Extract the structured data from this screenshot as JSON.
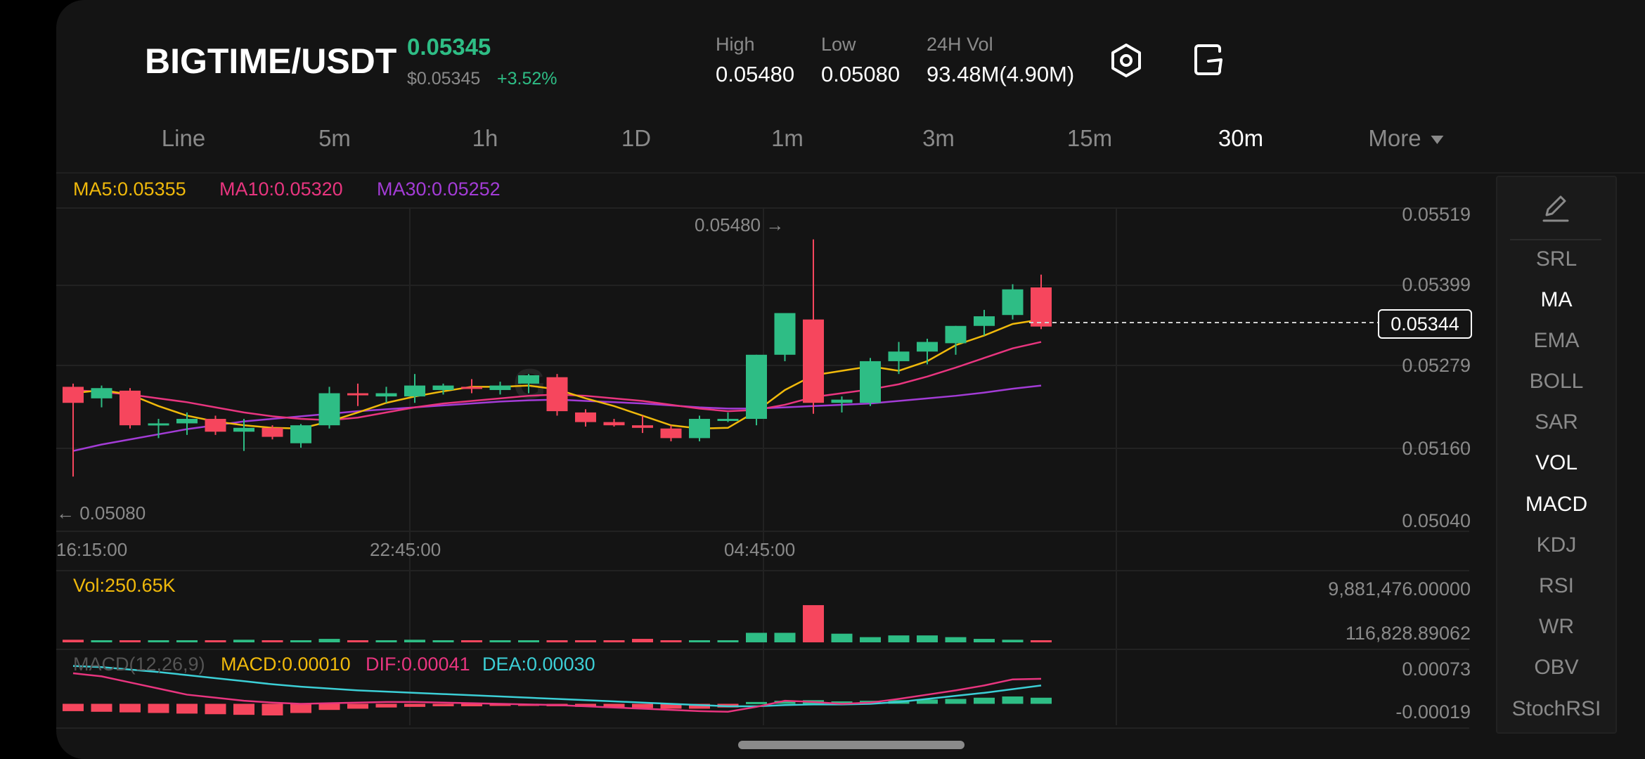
{
  "header": {
    "pair": "BIGTIME/USDT",
    "price": "0.05345",
    "price_usd": "$0.05345",
    "change": "+3.52%",
    "stats": [
      {
        "label": "High",
        "value": "0.05480"
      },
      {
        "label": "Low",
        "value": "0.05080"
      },
      {
        "label": "24H Vol",
        "value": "93.48M(4.90M)"
      }
    ],
    "icons": [
      "settings-icon",
      "share-icon"
    ]
  },
  "tabs": [
    {
      "label": "Line",
      "active": false
    },
    {
      "label": "5m",
      "active": false
    },
    {
      "label": "1h",
      "active": false
    },
    {
      "label": "1D",
      "active": false
    },
    {
      "label": "1m",
      "active": false
    },
    {
      "label": "3m",
      "active": false
    },
    {
      "label": "15m",
      "active": false
    },
    {
      "label": "30m",
      "active": true
    },
    {
      "label": "More",
      "active": false
    }
  ],
  "indicators": {
    "ma5": "MA5:0.05355",
    "ma10": "MA10:0.05320",
    "ma30": "MA30:0.05252",
    "vol": "Vol:250.65K",
    "macd_params": "MACD(12,26,9)",
    "macd": "MACD:0.00010",
    "dif": "DIF:0.00041",
    "dea": "DEA:0.00030"
  },
  "axes": {
    "price_ticks": [
      "0.05519",
      "0.05399",
      "0.05279",
      "0.05160",
      "0.05040"
    ],
    "time_ticks": [
      "16:15:00",
      "22:45:00",
      "04:45:00"
    ],
    "volume_ticks": [
      "9,881,476.00000",
      "116,828.89062"
    ],
    "macd_ticks": [
      "0.00073",
      "-0.00019"
    ],
    "last_price_tag": "0.05344",
    "high_annotation": "0.05480 →",
    "low_annotation": "← 0.05080"
  },
  "colors": {
    "up": "#2ebd85",
    "down": "#f6465d",
    "ma5": "#f0b90b",
    "ma10": "#e8357f",
    "ma30": "#a33cd6",
    "dea": "#3ccfd6"
  },
  "side_panel": {
    "items": [
      {
        "label": "SRL",
        "active": false
      },
      {
        "label": "MA",
        "active": true
      },
      {
        "label": "EMA",
        "active": false
      },
      {
        "label": "BOLL",
        "active": false
      },
      {
        "label": "SAR",
        "active": false
      },
      {
        "label": "VOL",
        "active": true
      },
      {
        "label": "MACD",
        "active": true
      },
      {
        "label": "KDJ",
        "active": false
      },
      {
        "label": "RSI",
        "active": false
      },
      {
        "label": "WR",
        "active": false
      },
      {
        "label": "OBV",
        "active": false
      },
      {
        "label": "StochRSI",
        "active": false
      }
    ]
  },
  "chart_data": {
    "type": "candlestick",
    "price_range": [
      0.0504,
      0.05519
    ],
    "candles": [
      {
        "o": 0.0525,
        "h": 0.05255,
        "l": 0.0511,
        "c": 0.05225
      },
      {
        "o": 0.05232,
        "h": 0.05252,
        "l": 0.05218,
        "c": 0.05248
      },
      {
        "o": 0.05244,
        "h": 0.05248,
        "l": 0.05185,
        "c": 0.0519
      },
      {
        "o": 0.0519,
        "h": 0.052,
        "l": 0.0517,
        "c": 0.05193
      },
      {
        "o": 0.05193,
        "h": 0.0521,
        "l": 0.05175,
        "c": 0.052
      },
      {
        "o": 0.052,
        "h": 0.05205,
        "l": 0.05175,
        "c": 0.0518
      },
      {
        "o": 0.0518,
        "h": 0.052,
        "l": 0.0515,
        "c": 0.05186
      },
      {
        "o": 0.05186,
        "h": 0.0519,
        "l": 0.05168,
        "c": 0.05172
      },
      {
        "o": 0.05162,
        "h": 0.05192,
        "l": 0.05155,
        "c": 0.0519
      },
      {
        "o": 0.0519,
        "h": 0.0525,
        "l": 0.05185,
        "c": 0.0524
      },
      {
        "o": 0.0524,
        "h": 0.05255,
        "l": 0.0522,
        "c": 0.05237
      },
      {
        "o": 0.05235,
        "h": 0.0525,
        "l": 0.05225,
        "c": 0.0524
      },
      {
        "o": 0.05235,
        "h": 0.0527,
        "l": 0.05225,
        "c": 0.05252
      },
      {
        "o": 0.05245,
        "h": 0.05255,
        "l": 0.05238,
        "c": 0.05252
      },
      {
        "o": 0.0525,
        "h": 0.05262,
        "l": 0.0524,
        "c": 0.05248
      },
      {
        "o": 0.05245,
        "h": 0.05258,
        "l": 0.05238,
        "c": 0.05252
      },
      {
        "o": 0.05255,
        "h": 0.0527,
        "l": 0.0524,
        "c": 0.05268
      },
      {
        "o": 0.05265,
        "h": 0.0527,
        "l": 0.05205,
        "c": 0.05212
      },
      {
        "o": 0.0521,
        "h": 0.05215,
        "l": 0.05188,
        "c": 0.05195
      },
      {
        "o": 0.05195,
        "h": 0.052,
        "l": 0.05188,
        "c": 0.0519
      },
      {
        "o": 0.0519,
        "h": 0.05205,
        "l": 0.05178,
        "c": 0.05186
      },
      {
        "o": 0.05185,
        "h": 0.0519,
        "l": 0.05165,
        "c": 0.0517
      },
      {
        "o": 0.0517,
        "h": 0.05205,
        "l": 0.05165,
        "c": 0.052
      },
      {
        "o": 0.052,
        "h": 0.0521,
        "l": 0.05195,
        "c": 0.052
      },
      {
        "o": 0.052,
        "h": 0.053,
        "l": 0.0519,
        "c": 0.053
      },
      {
        "o": 0.053,
        "h": 0.05365,
        "l": 0.0529,
        "c": 0.05365
      },
      {
        "o": 0.05355,
        "h": 0.0548,
        "l": 0.05208,
        "c": 0.05225
      },
      {
        "o": 0.05225,
        "h": 0.05235,
        "l": 0.0521,
        "c": 0.0523
      },
      {
        "o": 0.05225,
        "h": 0.05295,
        "l": 0.0522,
        "c": 0.0529
      },
      {
        "o": 0.0529,
        "h": 0.0532,
        "l": 0.0527,
        "c": 0.05305
      },
      {
        "o": 0.05305,
        "h": 0.05325,
        "l": 0.05285,
        "c": 0.0532
      },
      {
        "o": 0.05318,
        "h": 0.05345,
        "l": 0.053,
        "c": 0.05345
      },
      {
        "o": 0.05345,
        "h": 0.0537,
        "l": 0.0533,
        "c": 0.0536
      },
      {
        "o": 0.05362,
        "h": 0.0541,
        "l": 0.05355,
        "c": 0.05402
      },
      {
        "o": 0.05405,
        "h": 0.05425,
        "l": 0.0534,
        "c": 0.05344
      }
    ],
    "ma5": [
      0.0524,
      0.05245,
      0.05238,
      0.0522,
      0.05205,
      0.05196,
      0.0519,
      0.05186,
      0.05185,
      0.05196,
      0.0521,
      0.05225,
      0.05235,
      0.05243,
      0.0525,
      0.0525,
      0.05252,
      0.05246,
      0.05232,
      0.0522,
      0.05205,
      0.0519,
      0.05185,
      0.05186,
      0.05212,
      0.05245,
      0.05268,
      0.05275,
      0.05282,
      0.05275,
      0.0529,
      0.05315,
      0.0533,
      0.05348,
      0.05355
    ],
    "ma10": [
      0.05245,
      0.05242,
      0.05238,
      0.05232,
      0.05226,
      0.05218,
      0.0521,
      0.05204,
      0.052,
      0.05198,
      0.05202,
      0.0521,
      0.05218,
      0.05224,
      0.05228,
      0.05232,
      0.05236,
      0.05238,
      0.05236,
      0.05232,
      0.05228,
      0.05222,
      0.05216,
      0.05212,
      0.05214,
      0.05222,
      0.05234,
      0.0524,
      0.05246,
      0.05254,
      0.05266,
      0.0528,
      0.05295,
      0.0531,
      0.0532
    ],
    "ma30": [
      0.0515,
      0.0516,
      0.05168,
      0.05176,
      0.05184,
      0.0519,
      0.05196,
      0.052,
      0.05204,
      0.05208,
      0.05212,
      0.05215,
      0.05218,
      0.05221,
      0.05224,
      0.05227,
      0.05229,
      0.0523,
      0.05228,
      0.05226,
      0.05224,
      0.05221,
      0.05218,
      0.05216,
      0.05216,
      0.05218,
      0.0522,
      0.05222,
      0.05224,
      0.05228,
      0.05232,
      0.05236,
      0.05241,
      0.05247,
      0.05252
    ],
    "volume": [
      0.3,
      0.1,
      0.1,
      0.1,
      0.1,
      0.2,
      0.3,
      0.1,
      0.2,
      0.4,
      0.1,
      0.2,
      0.3,
      0.1,
      0.1,
      0.1,
      0.1,
      0.2,
      0.1,
      0.1,
      0.4,
      0.1,
      0.1,
      0.1,
      1.1,
      1.1,
      4.3,
      1.0,
      0.6,
      0.8,
      0.8,
      0.6,
      0.4,
      0.3,
      0.2
    ],
    "volume_range": [
      0,
      5.2
    ],
    "macd_hist": [
      -0.00012,
      -0.00013,
      -0.00014,
      -0.00015,
      -0.00016,
      -0.00017,
      -0.00018,
      -0.00019,
      -0.00015,
      -0.0001,
      -8e-05,
      -6e-05,
      -5e-05,
      -4e-05,
      -4e-05,
      -3e-05,
      -3e-05,
      -4e-05,
      -5e-05,
      -6e-05,
      -7e-05,
      -8e-05,
      -8e-05,
      -6e-05,
      3e-05,
      5e-05,
      6e-05,
      4e-05,
      5e-05,
      6e-05,
      7e-05,
      8e-05,
      0.0001,
      0.00012,
      0.0001
    ],
    "dif": [
      0.0005,
      0.00045,
      0.00035,
      0.00025,
      0.00015,
      0.0001,
      5e-05,
      2e-05,
      0.0,
      1e-05,
      2e-05,
      3e-05,
      3e-05,
      2e-05,
      1e-05,
      0.0,
      -1e-05,
      -2e-05,
      -4e-05,
      -6e-05,
      -8e-05,
      -0.0001,
      -0.00012,
      -0.00013,
      -5e-05,
      5e-05,
      3e-05,
      0.0,
      2e-05,
      8e-05,
      0.00015,
      0.00022,
      0.0003,
      0.0004,
      0.00041
    ],
    "dea": [
      0.00062,
      0.0006,
      0.00056,
      0.00052,
      0.00047,
      0.00042,
      0.00037,
      0.00032,
      0.00028,
      0.00025,
      0.00022,
      0.0002,
      0.00018,
      0.00016,
      0.00014,
      0.00012,
      0.0001,
      8e-05,
      6e-05,
      4e-05,
      2e-05,
      0.0,
      -2e-05,
      -4e-05,
      -4e-05,
      -2e-05,
      -1e-05,
      -1e-05,
      0.0,
      3e-05,
      8e-05,
      0.00013,
      0.00018,
      0.00024,
      0.0003
    ],
    "macd_range": [
      -0.00019,
      0.00073
    ]
  }
}
